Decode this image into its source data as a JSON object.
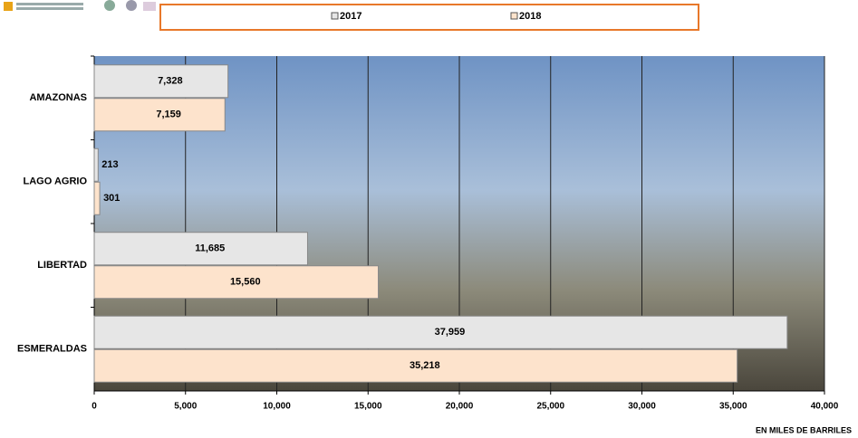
{
  "chart_data": {
    "type": "hbar",
    "categories": [
      "AMAZONAS",
      "LAGO AGRIO",
      "LIBERTAD",
      "ESMERALDAS"
    ],
    "series": [
      {
        "name": "2017",
        "color": "#e6e6e6",
        "values": [
          7328,
          213,
          11685,
          37959
        ],
        "value_labels": [
          "7,328",
          "213",
          "11,685",
          "37,959"
        ]
      },
      {
        "name": "2018",
        "color": "#fde3cc",
        "values": [
          7159,
          301,
          15560,
          35218
        ],
        "value_labels": [
          "7,159",
          "301",
          "15,560",
          "35,218"
        ]
      }
    ],
    "xlim": [
      0,
      40000
    ],
    "xticks": [
      0,
      {
        "value": 5000,
        "label": "5,000"
      },
      {
        "value": 10000,
        "label": "10,000"
      },
      {
        "value": 15000,
        "label": "15,000"
      },
      {
        "value": 20000,
        "label": "20,000"
      },
      {
        "value": 25000,
        "label": "25,000"
      },
      {
        "value": 30000,
        "label": "30,000"
      },
      {
        "value": 35000,
        "label": "35,000"
      },
      {
        "value": 40000,
        "label": "40,000"
      }
    ],
    "x_label": "EN MILES DE BARRILES",
    "grid": true
  }
}
